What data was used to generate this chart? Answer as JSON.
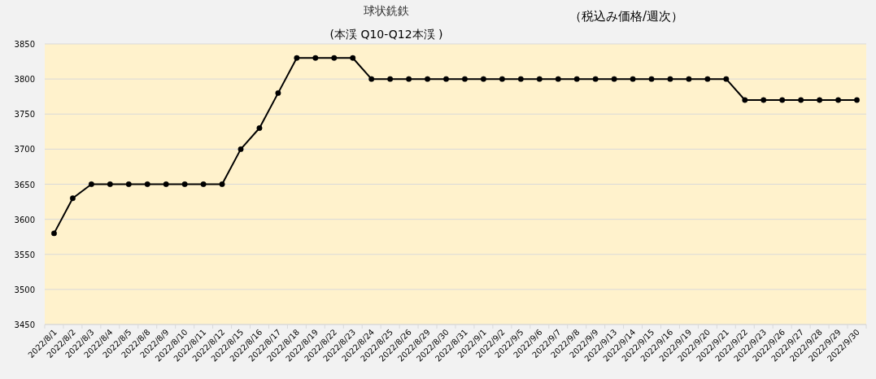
{
  "chart_data": {
    "type": "line",
    "title": "球状銑鉄",
    "subtitle": "(本渓 Q10-Q12本渓 )",
    "annotations": [
      "（税込み価格/週次）"
    ],
    "categories": [
      "2022/8/1",
      "2022/8/2",
      "2022/8/3",
      "2022/8/4",
      "2022/8/5",
      "2022/8/8",
      "2022/8/9",
      "2022/8/10",
      "2022/8/11",
      "2022/8/12",
      "2022/8/15",
      "2022/8/16",
      "2022/8/17",
      "2022/8/18",
      "2022/8/19",
      "2022/8/22",
      "2022/8/23",
      "2022/8/24",
      "2022/8/25",
      "2022/8/26",
      "2022/8/29",
      "2022/8/30",
      "2022/8/31",
      "2022/9/1",
      "2022/9/2",
      "2022/9/5",
      "2022/9/6",
      "2022/9/7",
      "2022/9/8",
      "2022/9/9",
      "2022/9/13",
      "2022/9/14",
      "2022/9/15",
      "2022/9/16",
      "2022/9/19",
      "2022/9/20",
      "2022/9/21",
      "2022/9/22",
      "2022/9/23",
      "2022/9/26",
      "2022/9/27",
      "2022/9/28",
      "2022/9/29",
      "2022/9/30"
    ],
    "series": [
      {
        "color": "#000000",
        "values": [
          3580,
          3630,
          3650,
          3650,
          3650,
          3650,
          3650,
          3650,
          3650,
          3650,
          3700,
          3730,
          3780,
          3830,
          3830,
          3830,
          3830,
          3800,
          3800,
          3800,
          3800,
          3800,
          3800,
          3800,
          3800,
          3800,
          3800,
          3800,
          3800,
          3800,
          3800,
          3800,
          3800,
          3800,
          3800,
          3800,
          3800,
          3770,
          3770,
          3770,
          3770,
          3770,
          3770,
          3770
        ]
      }
    ],
    "ylim": [
      3450,
      3850
    ],
    "yticks": [
      3450,
      3500,
      3550,
      3600,
      3650,
      3700,
      3750,
      3800,
      3850
    ],
    "grid": "y",
    "marker": "circle",
    "line_style": "solid"
  }
}
